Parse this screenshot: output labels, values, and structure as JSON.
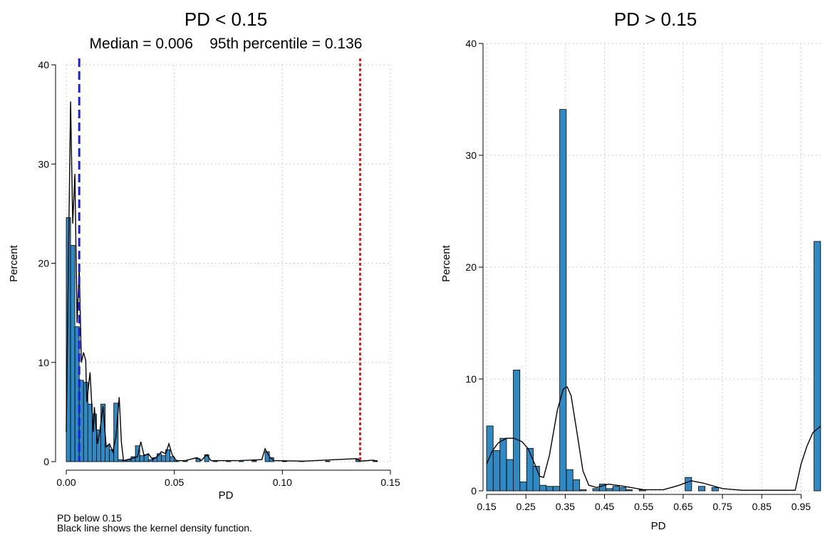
{
  "colors": {
    "bar_fill": "#2f8ac4",
    "bar_stroke": "#000000",
    "kde_line": "#000000",
    "median_line": "#1f1fe0",
    "p95_line": "#e01f1f",
    "grid": "#bdbdbd"
  },
  "notes": {
    "line1": "PD below 0.15",
    "line2": "Black line shows the kernel density function."
  },
  "chart_data": [
    {
      "type": "bar",
      "title": "PD < 0.15",
      "subtitle": "Median = 0.006    95th percentile = 0.136",
      "xlabel": "PD",
      "ylabel": "Percent",
      "xlim": [
        0.0,
        0.15
      ],
      "ylim": [
        0,
        40
      ],
      "x_ticks": [
        0.0,
        0.05,
        0.1,
        0.15
      ],
      "x_tick_labels": [
        "0.00",
        "0.05",
        "0.10",
        "0.15"
      ],
      "y_ticks": [
        0,
        10,
        20,
        30,
        40
      ],
      "grid": true,
      "bin_width": 0.002,
      "bins": [
        {
          "x": 0.0,
          "y": 24.6
        },
        {
          "x": 0.002,
          "y": 21.8
        },
        {
          "x": 0.004,
          "y": 13.6
        },
        {
          "x": 0.006,
          "y": 8.2
        },
        {
          "x": 0.008,
          "y": 8.0
        },
        {
          "x": 0.01,
          "y": 5.8
        },
        {
          "x": 0.012,
          "y": 4.8
        },
        {
          "x": 0.014,
          "y": 3.2
        },
        {
          "x": 0.016,
          "y": 5.8
        },
        {
          "x": 0.018,
          "y": 1.6
        },
        {
          "x": 0.02,
          "y": 1.2
        },
        {
          "x": 0.022,
          "y": 5.9
        },
        {
          "x": 0.024,
          "y": 0.2
        },
        {
          "x": 0.026,
          "y": 0.1
        },
        {
          "x": 0.028,
          "y": 0.2
        },
        {
          "x": 0.03,
          "y": 0.5
        },
        {
          "x": 0.032,
          "y": 1.6
        },
        {
          "x": 0.034,
          "y": 0.6
        },
        {
          "x": 0.036,
          "y": 0.7
        },
        {
          "x": 0.038,
          "y": 0.2
        },
        {
          "x": 0.04,
          "y": 0.4
        },
        {
          "x": 0.042,
          "y": 0.8
        },
        {
          "x": 0.044,
          "y": 0.6
        },
        {
          "x": 0.046,
          "y": 1.2
        },
        {
          "x": 0.048,
          "y": 0.5
        },
        {
          "x": 0.05,
          "y": 0.1
        },
        {
          "x": 0.054,
          "y": 0.1
        },
        {
          "x": 0.06,
          "y": 0.3
        },
        {
          "x": 0.064,
          "y": 0.7
        },
        {
          "x": 0.068,
          "y": 0.1
        },
        {
          "x": 0.074,
          "y": 0.1
        },
        {
          "x": 0.08,
          "y": 0.1
        },
        {
          "x": 0.086,
          "y": 0.1
        },
        {
          "x": 0.092,
          "y": 1.0
        },
        {
          "x": 0.094,
          "y": 0.4
        },
        {
          "x": 0.1,
          "y": 0.05
        },
        {
          "x": 0.108,
          "y": 0.05
        },
        {
          "x": 0.12,
          "y": 0.05
        },
        {
          "x": 0.134,
          "y": 0.3
        },
        {
          "x": 0.142,
          "y": 0.1
        }
      ],
      "kde": [
        [
          0.0,
          3.0
        ],
        [
          0.001,
          20.0
        ],
        [
          0.002,
          36.3
        ],
        [
          0.003,
          24.0
        ],
        [
          0.004,
          29.0
        ],
        [
          0.005,
          14.0
        ],
        [
          0.006,
          19.5
        ],
        [
          0.007,
          10.0
        ],
        [
          0.008,
          11.0
        ],
        [
          0.009,
          10.2
        ],
        [
          0.0095,
          6.0
        ],
        [
          0.011,
          9.0
        ],
        [
          0.0125,
          3.0
        ],
        [
          0.013,
          5.5
        ],
        [
          0.014,
          3.0
        ],
        [
          0.0145,
          1.8
        ],
        [
          0.0155,
          3.0
        ],
        [
          0.017,
          5.6
        ],
        [
          0.0185,
          1.5
        ],
        [
          0.02,
          1.8
        ],
        [
          0.0215,
          1.0
        ],
        [
          0.023,
          2.5
        ],
        [
          0.0245,
          6.5
        ],
        [
          0.0255,
          2.0
        ],
        [
          0.0265,
          0.1
        ],
        [
          0.03,
          0.3
        ],
        [
          0.033,
          0.5
        ],
        [
          0.0345,
          2.0
        ],
        [
          0.036,
          0.6
        ],
        [
          0.038,
          0.8
        ],
        [
          0.04,
          0.2
        ],
        [
          0.0425,
          0.6
        ],
        [
          0.044,
          1.0
        ],
        [
          0.046,
          0.8
        ],
        [
          0.0475,
          1.8
        ],
        [
          0.049,
          0.7
        ],
        [
          0.051,
          0.1
        ],
        [
          0.055,
          0.1
        ],
        [
          0.0605,
          0.4
        ],
        [
          0.0625,
          0.1
        ],
        [
          0.065,
          0.7
        ],
        [
          0.067,
          0.1
        ],
        [
          0.08,
          0.1
        ],
        [
          0.0905,
          0.2
        ],
        [
          0.092,
          1.3
        ],
        [
          0.094,
          0.5
        ],
        [
          0.096,
          0.1
        ],
        [
          0.11,
          0.05
        ],
        [
          0.134,
          0.3
        ],
        [
          0.136,
          0.05
        ],
        [
          0.142,
          0.15
        ],
        [
          0.144,
          0.05
        ]
      ],
      "reference_lines": [
        {
          "name": "Median",
          "x": 0.006,
          "color": "#1f1fe0",
          "style": "dashed"
        },
        {
          "name": "95th percentile",
          "x": 0.136,
          "color": "#e01f1f",
          "style": "dotted"
        }
      ]
    },
    {
      "type": "bar",
      "title": "PD > 0.15",
      "xlabel": "PD",
      "ylabel": "Percent",
      "xlim": [
        0.15,
        1.0
      ],
      "ylim": [
        0,
        40
      ],
      "x_ticks": [
        0.15,
        0.25,
        0.35,
        0.45,
        0.55,
        0.65,
        0.75,
        0.85,
        0.95
      ],
      "x_tick_labels": [
        "0.15",
        "0.25",
        "0.35",
        "0.45",
        "0.55",
        "0.65",
        "0.75",
        "0.85",
        "0.95"
      ],
      "y_ticks": [
        0,
        10,
        20,
        30,
        40
      ],
      "grid": true,
      "bin_width": 0.0167,
      "bins": [
        {
          "x": 0.15,
          "y": 5.8
        },
        {
          "x": 0.167,
          "y": 3.6
        },
        {
          "x": 0.184,
          "y": 4.7
        },
        {
          "x": 0.201,
          "y": 2.8
        },
        {
          "x": 0.218,
          "y": 10.8
        },
        {
          "x": 0.235,
          "y": 0.8
        },
        {
          "x": 0.252,
          "y": 3.8
        },
        {
          "x": 0.268,
          "y": 2.2
        },
        {
          "x": 0.285,
          "y": 0.5
        },
        {
          "x": 0.302,
          "y": 0.4
        },
        {
          "x": 0.319,
          "y": 0.4
        },
        {
          "x": 0.336,
          "y": 34.1
        },
        {
          "x": 0.353,
          "y": 1.9
        },
        {
          "x": 0.37,
          "y": 1.0
        },
        {
          "x": 0.387,
          "y": 0.1
        },
        {
          "x": 0.42,
          "y": 0.2
        },
        {
          "x": 0.437,
          "y": 0.6
        },
        {
          "x": 0.454,
          "y": 0.2
        },
        {
          "x": 0.471,
          "y": 0.4
        },
        {
          "x": 0.488,
          "y": 0.3
        },
        {
          "x": 0.504,
          "y": 0.1
        },
        {
          "x": 0.538,
          "y": 0.1
        },
        {
          "x": 0.655,
          "y": 1.2
        },
        {
          "x": 0.689,
          "y": 0.4
        },
        {
          "x": 0.723,
          "y": 0.3
        },
        {
          "x": 0.983,
          "y": 22.3
        }
      ],
      "kde": [
        [
          0.15,
          2.4
        ],
        [
          0.165,
          3.6
        ],
        [
          0.18,
          4.3
        ],
        [
          0.2,
          4.7
        ],
        [
          0.22,
          4.7
        ],
        [
          0.24,
          4.4
        ],
        [
          0.255,
          3.8
        ],
        [
          0.27,
          2.6
        ],
        [
          0.285,
          1.3
        ],
        [
          0.295,
          1.2
        ],
        [
          0.31,
          3.2
        ],
        [
          0.33,
          7.2
        ],
        [
          0.345,
          9.1
        ],
        [
          0.355,
          9.3
        ],
        [
          0.365,
          8.5
        ],
        [
          0.38,
          5.2
        ],
        [
          0.395,
          1.8
        ],
        [
          0.41,
          0.5
        ],
        [
          0.43,
          0.3
        ],
        [
          0.46,
          0.6
        ],
        [
          0.5,
          0.4
        ],
        [
          0.55,
          0.1
        ],
        [
          0.6,
          0.1
        ],
        [
          0.64,
          0.5
        ],
        [
          0.67,
          0.9
        ],
        [
          0.7,
          0.7
        ],
        [
          0.75,
          0.2
        ],
        [
          0.8,
          0.05
        ],
        [
          0.92,
          0.05
        ],
        [
          0.935,
          0.05
        ],
        [
          0.95,
          2.4
        ],
        [
          0.965,
          4.0
        ],
        [
          0.98,
          5.2
        ],
        [
          1.0,
          5.8
        ]
      ]
    }
  ]
}
